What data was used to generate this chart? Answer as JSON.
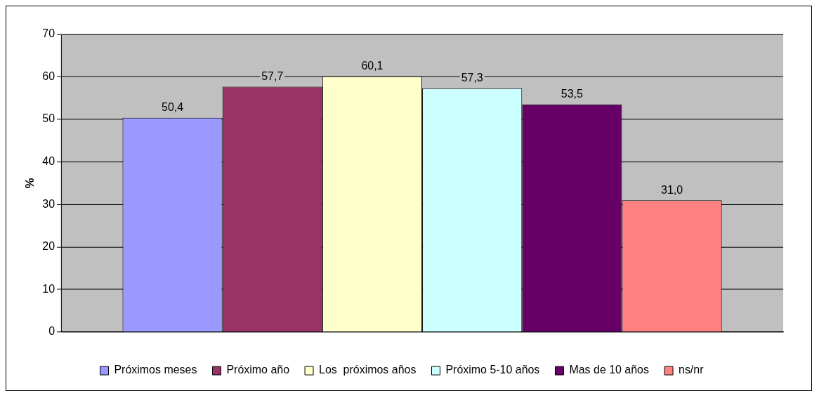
{
  "chart_data": {
    "type": "bar",
    "ylabel": "%",
    "categories": [
      null
    ],
    "series": [
      {
        "name": "Próximos meses",
        "color": "#9999ff",
        "values": [
          50.4
        ],
        "value_labels": [
          "50,4"
        ]
      },
      {
        "name": "Próximo año",
        "color": "#993366",
        "values": [
          57.7
        ],
        "value_labels": [
          "57,7"
        ]
      },
      {
        "name": "Los  próximos años",
        "color": "#ffffcc",
        "values": [
          60.1
        ],
        "value_labels": [
          "60,1"
        ]
      },
      {
        "name": "Próximo 5-10 años",
        "color": "#ccffff",
        "values": [
          57.3
        ],
        "value_labels": [
          "57,3"
        ]
      },
      {
        "name": "Mas de 10 años",
        "color": "#660066",
        "values": [
          53.5
        ],
        "value_labels": [
          "53,5"
        ]
      },
      {
        "name": "ns/nr",
        "color": "#ff8080",
        "values": [
          31.0
        ],
        "value_labels": [
          "31,0"
        ]
      }
    ],
    "ylim": [
      0,
      70
    ],
    "yticks": [
      0,
      10,
      20,
      30,
      40,
      50,
      60,
      70
    ],
    "grid": "y",
    "legend": "bottom"
  }
}
